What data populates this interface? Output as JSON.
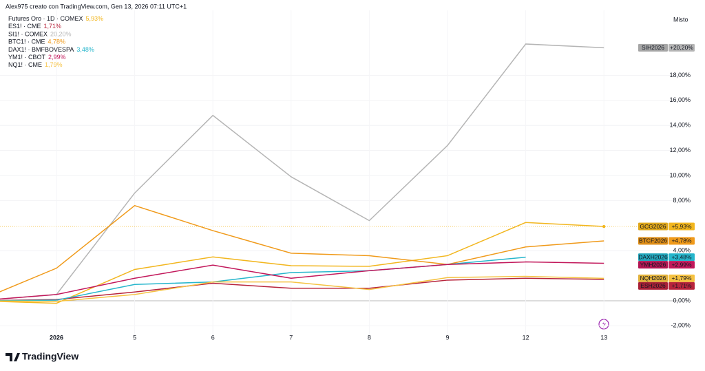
{
  "header": "Alex975 creato con TradingView.com, Gen 13, 2026 07:11 UTC+1",
  "brand": "TradingView",
  "chart_data": {
    "type": "line",
    "scale_label": "Misto",
    "categories": [
      null,
      "2026",
      "5",
      "6",
      "7",
      "8",
      "9",
      "12",
      "13"
    ],
    "ylim": [
      -2.64,
      23.19
    ],
    "yticks": [
      {
        "value": -2,
        "label": "-2,00%"
      },
      {
        "value": 0,
        "label": "0,00%"
      },
      {
        "value": 4,
        "label": "4,00%"
      },
      {
        "value": 8,
        "label": "8,00%"
      },
      {
        "value": 10,
        "label": "10,00%"
      },
      {
        "value": 12,
        "label": "12,00%"
      },
      {
        "value": 14,
        "label": "14,00%"
      },
      {
        "value": 16,
        "label": "16,00%"
      },
      {
        "value": 18,
        "label": "18,00%"
      }
    ],
    "grid": true,
    "series": [
      {
        "name": "Futures Oro · 1D · COMEX",
        "legend_value": "5,93%",
        "tag": "GCG2026",
        "color": "#f2b61e",
        "price_line": true,
        "values": [
          0,
          -0.2,
          2.5,
          3.5,
          2.8,
          2.75,
          3.6,
          6.25,
          5.93
        ],
        "value_labels": [
          null,
          null,
          null,
          null,
          null,
          null,
          null,
          null,
          "+5,93%"
        ]
      },
      {
        "name": "ES1! · CME",
        "legend_value": "1,71%",
        "tag": "ESH2026",
        "color": "#b7243c",
        "values": [
          0,
          0.1,
          0.7,
          1.4,
          1.0,
          1.0,
          1.65,
          1.8,
          1.71
        ],
        "value_labels": [
          null,
          null,
          null,
          null,
          null,
          null,
          null,
          null,
          "+1,71%"
        ]
      },
      {
        "name": "SI1! · COMEX",
        "legend_value": "20,20%",
        "tag": "SIH2026",
        "color": "#b5b5b5",
        "values": [
          0,
          0.5,
          8.6,
          14.8,
          9.9,
          6.4,
          12.4,
          20.5,
          20.2
        ],
        "value_labels": [
          null,
          null,
          null,
          null,
          null,
          null,
          null,
          null,
          "+20,20%"
        ]
      },
      {
        "name": "BTC1! · CME",
        "legend_value": "4,78%",
        "tag": "BTCF2026",
        "color": "#f09a1a",
        "values": [
          0,
          2.6,
          7.6,
          5.6,
          3.8,
          3.6,
          2.9,
          4.3,
          4.78
        ],
        "value_labels": [
          null,
          null,
          null,
          null,
          null,
          null,
          null,
          null,
          "+4,78%"
        ]
      },
      {
        "name": "DAX1! · BMFBOVESPA",
        "legend_value": "3,48%",
        "tag": "DAXH2026",
        "color": "#26b6cc",
        "values": [
          0,
          0.05,
          1.3,
          1.5,
          2.25,
          2.4,
          2.9,
          3.48,
          null
        ],
        "value_labels": [
          null,
          null,
          null,
          null,
          null,
          null,
          null,
          "+3,48%",
          null
        ]
      },
      {
        "name": "YM1! · CBOT",
        "legend_value": "2,99%",
        "tag": "YMH2026",
        "color": "#c2185b",
        "values": [
          0,
          0.5,
          1.8,
          2.85,
          1.8,
          2.4,
          2.9,
          3.1,
          2.99
        ],
        "value_labels": [
          null,
          null,
          null,
          null,
          null,
          null,
          null,
          null,
          "+2,99%"
        ]
      },
      {
        "name": "NQ1! · CME",
        "legend_value": "1,79%",
        "tag": "NQH2026",
        "color": "#f5c242",
        "values": [
          0,
          -0.05,
          0.5,
          1.5,
          1.5,
          0.9,
          1.85,
          1.95,
          1.79
        ],
        "value_labels": [
          null,
          null,
          null,
          null,
          null,
          null,
          null,
          null,
          "+1,79%"
        ]
      }
    ]
  }
}
